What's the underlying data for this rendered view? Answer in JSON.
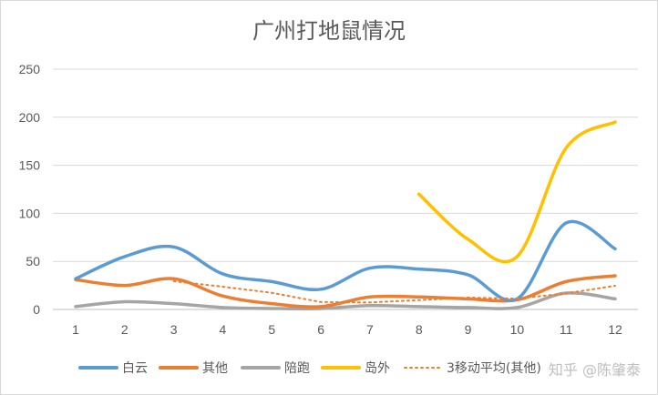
{
  "chart_data": {
    "type": "line",
    "title": "广州打地鼠情况",
    "xlabel": "",
    "ylabel": "",
    "x": [
      1,
      2,
      3,
      4,
      5,
      6,
      7,
      8,
      9,
      10,
      11,
      12
    ],
    "ylim": [
      0,
      250
    ],
    "yticks": [
      0,
      50,
      100,
      150,
      200,
      250
    ],
    "grid": true,
    "legend_position": "bottom",
    "series": [
      {
        "name": "白云",
        "color": "#5b9bd5",
        "style": "solid",
        "values": [
          32,
          55,
          65,
          37,
          29,
          21,
          43,
          42,
          36,
          11,
          90,
          63
        ]
      },
      {
        "name": "其他",
        "color": "#ed7d31",
        "style": "solid",
        "values": [
          31,
          25,
          32,
          14,
          6,
          3,
          13,
          13,
          11,
          10,
          29,
          35
        ]
      },
      {
        "name": "陪跑",
        "color": "#a5a5a5",
        "style": "solid",
        "values": [
          3,
          8,
          6,
          2,
          1,
          1,
          4,
          3,
          2,
          2,
          17,
          11
        ]
      },
      {
        "name": "岛外",
        "color": "#ffc000",
        "style": "solid",
        "values": [
          null,
          null,
          null,
          null,
          null,
          null,
          null,
          120,
          73,
          55,
          168,
          195
        ]
      },
      {
        "name": "3移动平均(其他)",
        "color": "#ed7d31",
        "style": "dotted",
        "values": [
          null,
          null,
          29.3,
          23.7,
          17.3,
          7.7,
          7.3,
          9.7,
          12.3,
          11.3,
          16.7,
          24.7
        ]
      }
    ],
    "watermark": "知乎 @陈肇泰"
  }
}
